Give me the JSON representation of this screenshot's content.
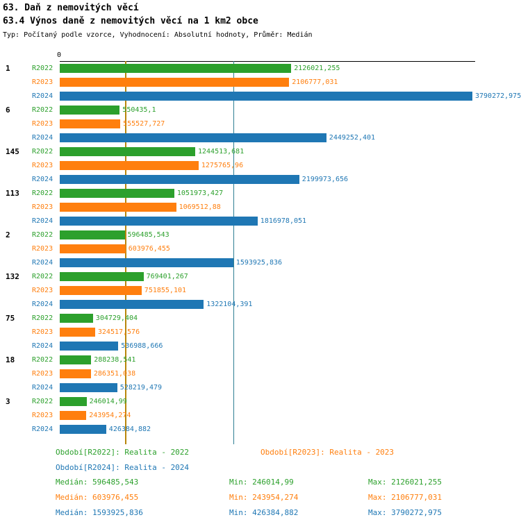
{
  "header": {
    "title1": "63. Daň z nemovitých věcí",
    "title2": "63.4 Výnos daně z nemovitých věcí na 1 km2 obce",
    "meta": "Typ: Počítaný podle vzorce, Vyhodnocení: Absolutní hodnoty, Průměr: Medián"
  },
  "chart_data": {
    "type": "bar",
    "orientation": "horizontal",
    "title": "63.4 Výnos daně z nemovitých věcí na 1 km2 obce",
    "xlabel": "",
    "ylabel": "",
    "legend_position": "bottom",
    "x_axis": {
      "zero_label": "0",
      "xlim": [
        0,
        3790272.975
      ]
    },
    "series": [
      {
        "name": "R2022",
        "legend": "Období[R2022]: Realita - 2022",
        "color": "#2ca02c",
        "median": 596485.543,
        "min": 246014.99,
        "max": 2126021.255
      },
      {
        "name": "R2023",
        "legend": "Období[R2023]: Realita - 2023",
        "color": "#ff7f0e",
        "median": 603976.455,
        "min": 243954.274,
        "max": 2106777.031
      },
      {
        "name": "R2024",
        "legend": "Období[R2024]: Realita - 2024",
        "color": "#1f77b4",
        "median": 1593925.836,
        "min": 426384.882,
        "max": 3790272.975
      }
    ],
    "median_lines": [
      {
        "series": "R2022",
        "value": 596485.543,
        "color": "#b8860b"
      },
      {
        "series": "R2023",
        "value": 603976.455,
        "color": "#b8860b"
      },
      {
        "series": "R2024",
        "value": 1593925.836,
        "color": "#2f7f93"
      }
    ],
    "groups": [
      {
        "label": "1",
        "bars": [
          {
            "series": "R2022",
            "value": 2126021.255,
            "display": "2126021,255"
          },
          {
            "series": "R2023",
            "value": 2106777.031,
            "display": "2106777,031"
          },
          {
            "series": "R2024",
            "value": 3790272.975,
            "display": "3790272,975"
          }
        ]
      },
      {
        "label": "6",
        "bars": [
          {
            "series": "R2022",
            "value": 550435.1,
            "display": "550435,1"
          },
          {
            "series": "R2023",
            "value": 555527.727,
            "display": "555527,727"
          },
          {
            "series": "R2024",
            "value": 2449252.401,
            "display": "2449252,401"
          }
        ]
      },
      {
        "label": "145",
        "bars": [
          {
            "series": "R2022",
            "value": 1244513.681,
            "display": "1244513,681"
          },
          {
            "series": "R2023",
            "value": 1275765.96,
            "display": "1275765,96"
          },
          {
            "series": "R2024",
            "value": 2199973.656,
            "display": "2199973,656"
          }
        ]
      },
      {
        "label": "113",
        "bars": [
          {
            "series": "R2022",
            "value": 1051973.427,
            "display": "1051973,427"
          },
          {
            "series": "R2023",
            "value": 1069512.88,
            "display": "1069512,88"
          },
          {
            "series": "R2024",
            "value": 1816978.051,
            "display": "1816978,051"
          }
        ]
      },
      {
        "label": "2",
        "bars": [
          {
            "series": "R2022",
            "value": 596485.543,
            "display": "596485,543"
          },
          {
            "series": "R2023",
            "value": 603976.455,
            "display": "603976,455"
          },
          {
            "series": "R2024",
            "value": 1593925.836,
            "display": "1593925,836"
          }
        ]
      },
      {
        "label": "132",
        "bars": [
          {
            "series": "R2022",
            "value": 769401.267,
            "display": "769401,267"
          },
          {
            "series": "R2023",
            "value": 751855.101,
            "display": "751855,101"
          },
          {
            "series": "R2024",
            "value": 1322104.391,
            "display": "1322104,391"
          }
        ]
      },
      {
        "label": "75",
        "bars": [
          {
            "series": "R2022",
            "value": 304729.404,
            "display": "304729,404"
          },
          {
            "series": "R2023",
            "value": 324517.576,
            "display": "324517,576"
          },
          {
            "series": "R2024",
            "value": 536988.666,
            "display": "536988,666"
          }
        ]
      },
      {
        "label": "18",
        "bars": [
          {
            "series": "R2022",
            "value": 288238.541,
            "display": "288238,541"
          },
          {
            "series": "R2023",
            "value": 286351.038,
            "display": "286351,038"
          },
          {
            "series": "R2024",
            "value": 528219.479,
            "display": "528219,479"
          }
        ]
      },
      {
        "label": "3",
        "bars": [
          {
            "series": "R2022",
            "value": 246014.99,
            "display": "246014,99"
          },
          {
            "series": "R2023",
            "value": 243954.274,
            "display": "243954,274"
          },
          {
            "series": "R2024",
            "value": 426384.882,
            "display": "426384,882"
          }
        ]
      }
    ]
  },
  "legend": {
    "items": [
      {
        "label": "Období[R2022]: Realita - 2022"
      },
      {
        "label": "Období[R2023]: Realita - 2023"
      },
      {
        "label": "Období[R2024]: Realita - 2024"
      }
    ]
  },
  "stats": {
    "rows": [
      {
        "median": "Medián: 596485,543",
        "min": "Min: 246014,99",
        "max": "Max: 2126021,255"
      },
      {
        "median": "Medián: 603976,455",
        "min": "Min: 243954,274",
        "max": "Max: 2106777,031"
      },
      {
        "median": "Medián: 1593925,836",
        "min": "Min: 426384,882",
        "max": "Max: 3790272,975"
      }
    ]
  },
  "colors": {
    "r2022": "#2ca02c",
    "r2023": "#ff7f0e",
    "r2024": "#1f77b4",
    "axis": "#000000"
  }
}
